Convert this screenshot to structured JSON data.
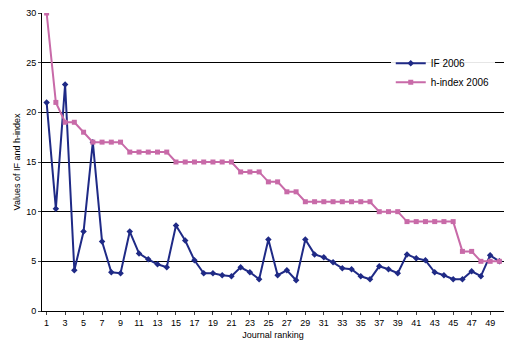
{
  "chart_data": {
    "type": "line",
    "x_label": "Journal ranking",
    "y_label": "Values of IF and h-index",
    "x": [
      1,
      2,
      3,
      4,
      5,
      6,
      7,
      8,
      9,
      10,
      11,
      12,
      13,
      14,
      15,
      16,
      17,
      18,
      19,
      20,
      21,
      22,
      23,
      24,
      25,
      26,
      27,
      28,
      29,
      30,
      31,
      32,
      33,
      34,
      35,
      36,
      37,
      38,
      39,
      40,
      41,
      42,
      43,
      44,
      45,
      46,
      47,
      48,
      49,
      50
    ],
    "series": [
      {
        "name": "IF 2006",
        "color": "#1f2a86",
        "marker": "diamond",
        "values": [
          21,
          10.3,
          22.8,
          4.1,
          8,
          17,
          7,
          3.9,
          3.8,
          8,
          5.8,
          5.2,
          4.7,
          4.4,
          8.6,
          7.1,
          5.1,
          3.8,
          3.8,
          3.6,
          3.5,
          4.4,
          3.9,
          3.2,
          7.2,
          3.6,
          4.1,
          3.1,
          7.2,
          5.7,
          5.4,
          4.9,
          4.3,
          4.2,
          3.5,
          3.2,
          4.5,
          4.2,
          3.8,
          5.7,
          5.3,
          5.1,
          3.9,
          3.6,
          3.2,
          3.2,
          4,
          3.5,
          5.6,
          5
        ]
      },
      {
        "name": "h-index 2006",
        "color": "#c86aa8",
        "marker": "square",
        "values": [
          30,
          21,
          19,
          19,
          18,
          17,
          17,
          17,
          17,
          16,
          16,
          16,
          16,
          16,
          15,
          15,
          15,
          15,
          15,
          15,
          15,
          14,
          14,
          14,
          13,
          13,
          12,
          12,
          11,
          11,
          11,
          11,
          11,
          11,
          11,
          11,
          10,
          10,
          10,
          9,
          9,
          9,
          9,
          9,
          9,
          6,
          6,
          5,
          5,
          5
        ]
      }
    ],
    "xlim": [
      0.5,
      50.5
    ],
    "xticks": [
      1,
      3,
      5,
      7,
      9,
      11,
      13,
      15,
      17,
      19,
      21,
      23,
      25,
      27,
      29,
      31,
      33,
      35,
      37,
      39,
      41,
      43,
      45,
      47,
      49
    ],
    "ylim": [
      0,
      30
    ],
    "yticks": [
      0,
      5,
      10,
      15,
      20,
      25,
      30
    ],
    "grid": true,
    "legend": "upper right"
  }
}
